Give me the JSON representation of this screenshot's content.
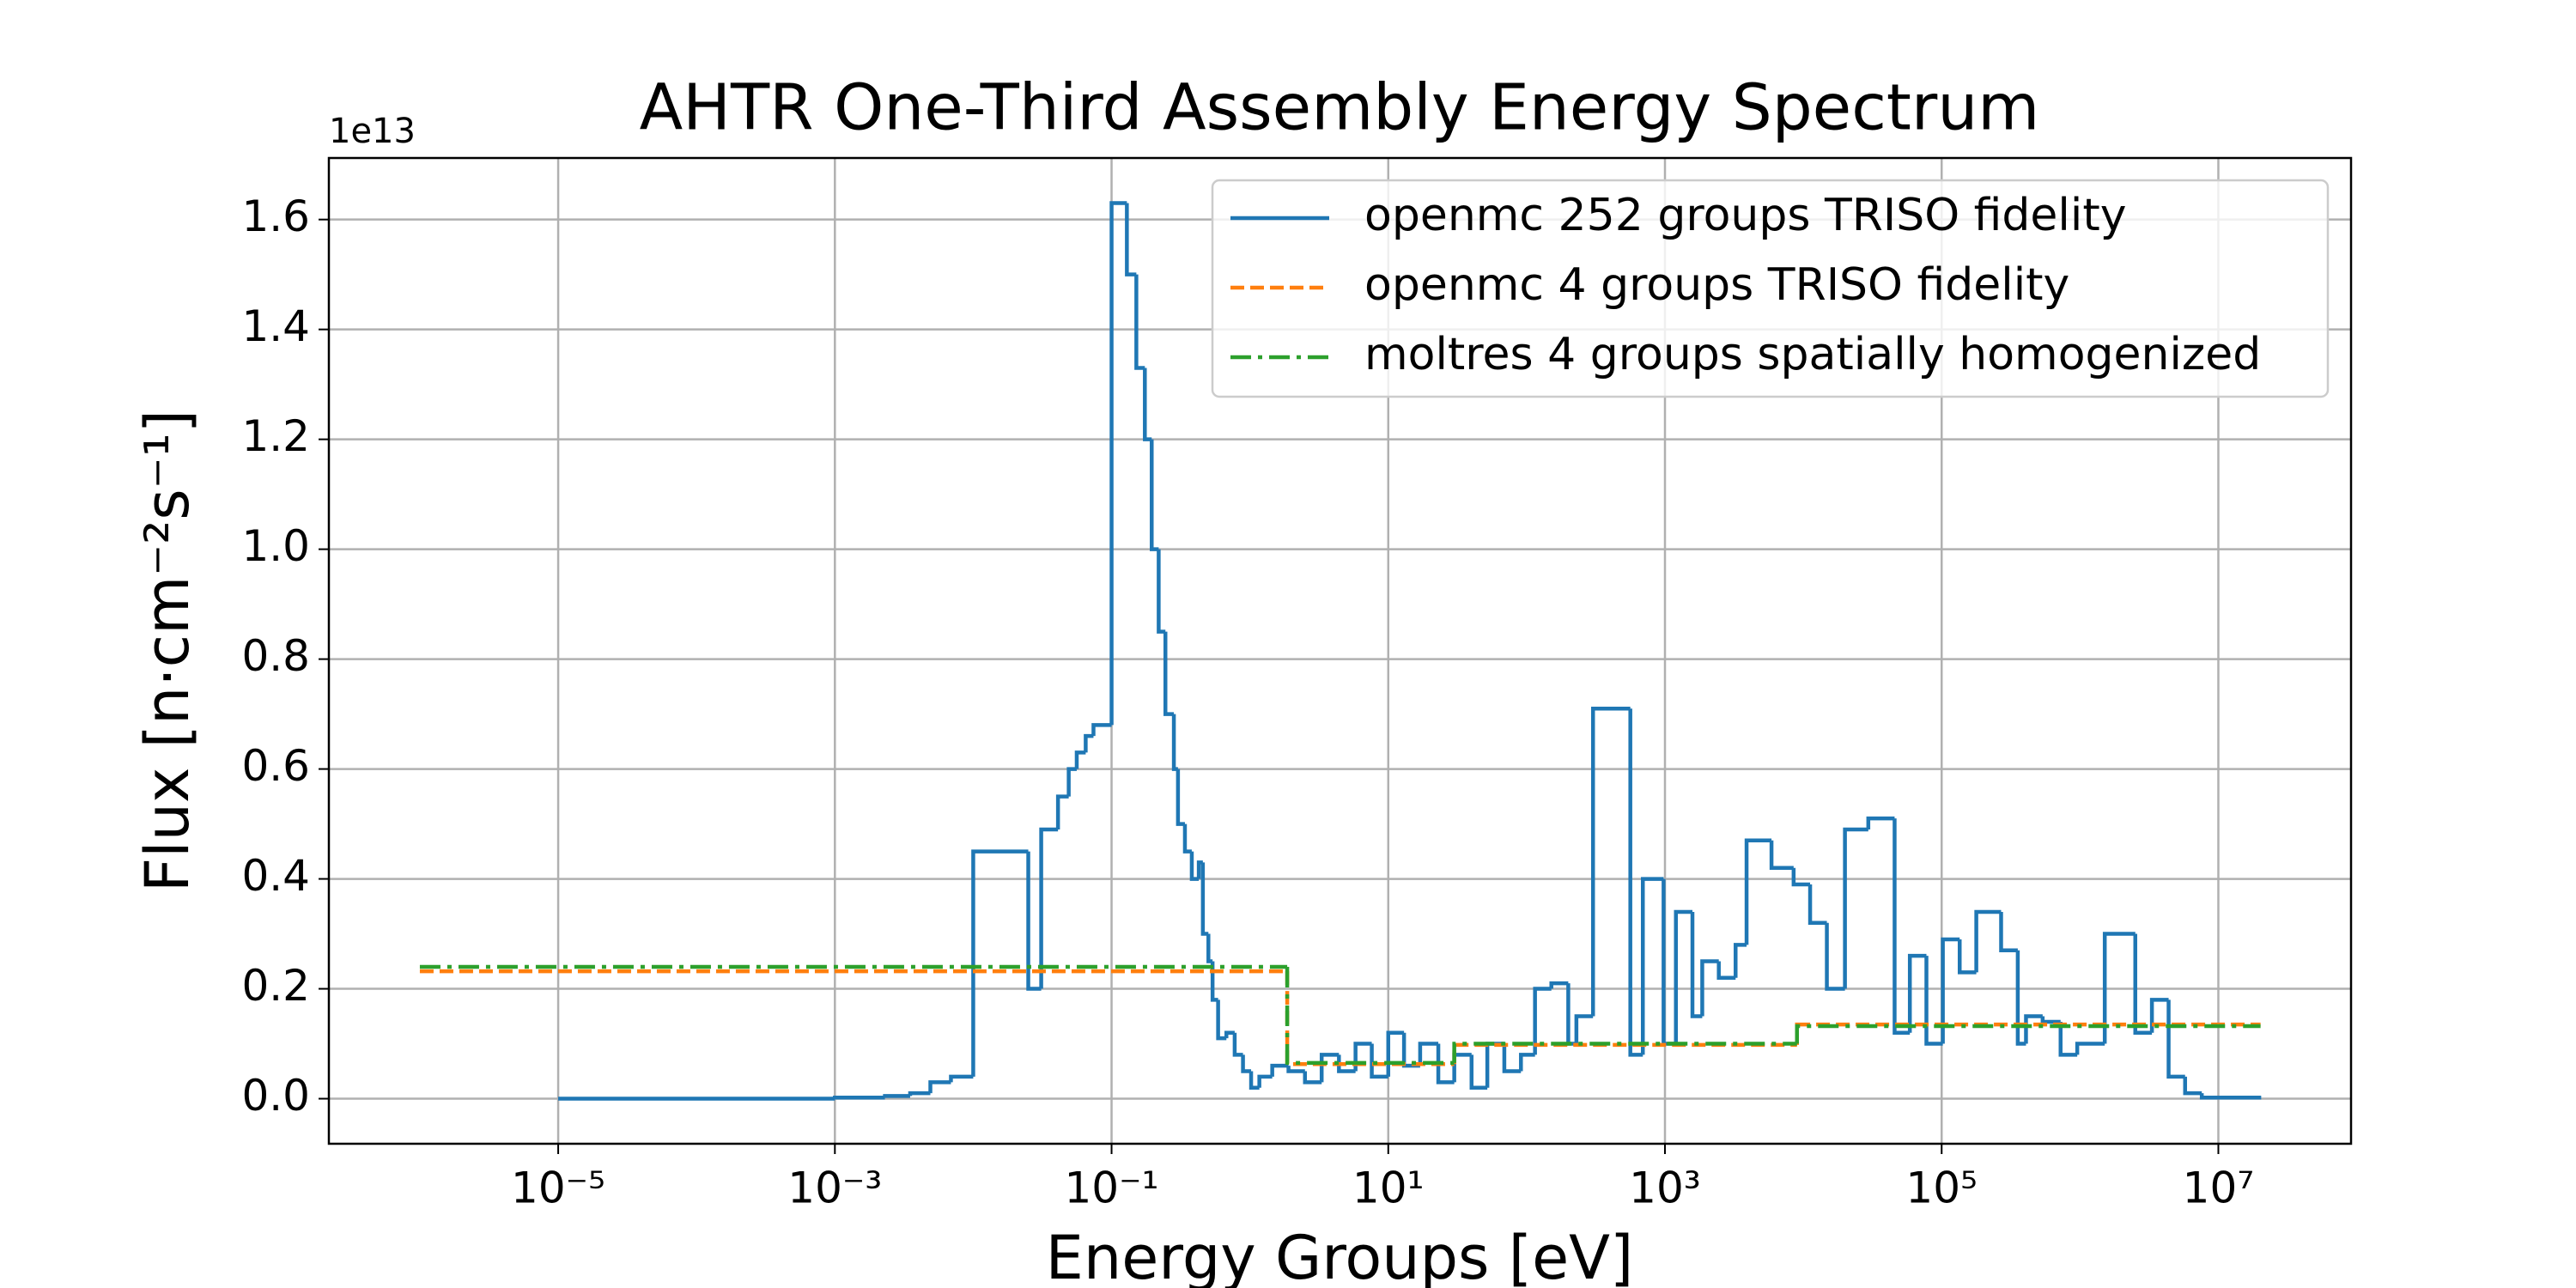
{
  "chart_data": {
    "type": "step",
    "title": "AHTR One-Third Assembly Energy Spectrum",
    "xlabel": "Energy Groups [eV]",
    "ylabel": "Flux [n·cm⁻²s⁻¹]",
    "y_offset_label": "1e13",
    "xscale": "log",
    "grid": true,
    "legend_loc": "upper right",
    "xlim": [
      2.2e-07,
      91000000.0
    ],
    "ylim": [
      -0.082,
      1.712
    ],
    "xticks": [
      {
        "value": 1e-05,
        "label": "10⁻⁵"
      },
      {
        "value": 0.001,
        "label": "10⁻³"
      },
      {
        "value": 0.1,
        "label": "10⁻¹"
      },
      {
        "value": 10,
        "label": "10¹"
      },
      {
        "value": 1000,
        "label": "10³"
      },
      {
        "value": 100000,
        "label": "10⁵"
      },
      {
        "value": 10000000,
        "label": "10⁷"
      }
    ],
    "yticks": [
      {
        "value": 0,
        "label": "0.0"
      },
      {
        "value": 0.2,
        "label": "0.2"
      },
      {
        "value": 0.4,
        "label": "0.4"
      },
      {
        "value": 0.6,
        "label": "0.6"
      },
      {
        "value": 0.8,
        "label": "0.8"
      },
      {
        "value": 1,
        "label": "1.0"
      },
      {
        "value": 1.2,
        "label": "1.2"
      },
      {
        "value": 1.4,
        "label": "1.4"
      },
      {
        "value": 1.6,
        "label": "1.6"
      }
    ],
    "series": [
      {
        "name": "openmc 252 groups TRISO fidelity",
        "color": "#1f77b4",
        "linestyle": "solid",
        "x": [
          1e-05,
          0.001,
          0.0023,
          0.0035,
          0.0049,
          0.0069,
          0.01,
          0.025,
          0.031,
          0.041,
          0.049,
          0.056,
          0.065,
          0.074,
          0.1,
          0.129,
          0.151,
          0.174,
          0.195,
          0.219,
          0.245,
          0.282,
          0.302,
          0.339,
          0.38,
          0.427,
          0.457,
          0.501,
          0.537,
          0.589,
          0.676,
          0.776,
          0.891,
          1.02,
          1.17,
          1.45,
          1.9,
          2.5,
          3.3,
          4.4,
          5.8,
          7.6,
          10,
          13,
          17,
          23,
          30,
          40,
          52,
          69,
          91,
          115,
          151,
          200,
          229,
          302,
          562,
          692,
          977,
          1200,
          1580,
          1860,
          2450,
          3240,
          3890,
          5890,
          8510,
          11200,
          14800,
          20000,
          29500,
          45700,
          58900,
          77600,
          102000,
          135000,
          178000,
          269000,
          355000,
          407000,
          537000,
          724000,
          955000,
          1510000,
          2510000,
          3310000,
          4370000,
          5750000,
          7590000,
          20400000
        ],
        "values": [
          0,
          0.002,
          0.005,
          0.01,
          0.03,
          0.04,
          0.45,
          0.2,
          0.49,
          0.55,
          0.6,
          0.63,
          0.66,
          0.68,
          1.63,
          1.5,
          1.33,
          1.2,
          1.0,
          0.85,
          0.7,
          0.6,
          0.5,
          0.45,
          0.4,
          0.43,
          0.3,
          0.25,
          0.18,
          0.11,
          0.12,
          0.08,
          0.05,
          0.02,
          0.04,
          0.06,
          0.05,
          0.03,
          0.08,
          0.05,
          0.1,
          0.04,
          0.12,
          0.06,
          0.1,
          0.03,
          0.08,
          0.02,
          0.1,
          0.05,
          0.08,
          0.2,
          0.21,
          0.1,
          0.15,
          0.71,
          0.08,
          0.4,
          0.1,
          0.34,
          0.15,
          0.25,
          0.22,
          0.28,
          0.47,
          0.42,
          0.39,
          0.32,
          0.2,
          0.49,
          0.51,
          0.12,
          0.26,
          0.1,
          0.29,
          0.23,
          0.34,
          0.27,
          0.1,
          0.15,
          0.14,
          0.08,
          0.1,
          0.3,
          0.12,
          0.18,
          0.04,
          0.01,
          0.002,
          0.002
        ]
      },
      {
        "name": "openmc 4 groups TRISO fidelity",
        "color": "#ff7f0e",
        "linestyle": "dashed",
        "x": [
          1e-06,
          1.86,
          30,
          9000,
          20000000
        ],
        "values": [
          0.232,
          0.063,
          0.098,
          0.135,
          0.135
        ]
      },
      {
        "name": "moltres 4 groups spatially homogenized",
        "color": "#2ca02c",
        "linestyle": "dashdot",
        "x": [
          1e-06,
          1.86,
          30,
          9000,
          20000000
        ],
        "values": [
          0.24,
          0.065,
          0.1,
          0.132,
          0.132
        ]
      }
    ]
  }
}
